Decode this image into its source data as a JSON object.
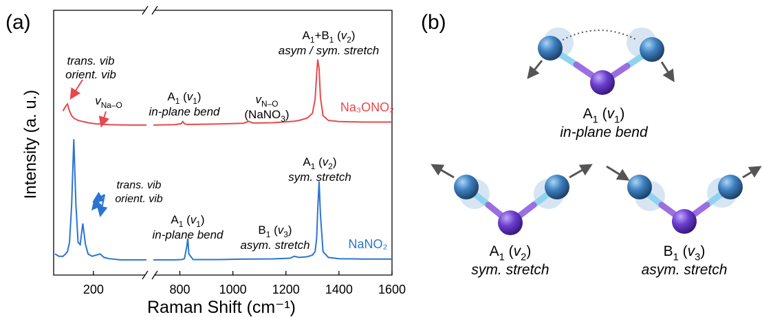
{
  "chart_data": {
    "type": "line",
    "panel_labels": [
      "(a)",
      "(b)"
    ],
    "x_label": "Raman Shift (cm⁻¹)",
    "y_label": "Intensity (a. u.)",
    "xlim": [
      50,
      1600
    ],
    "x_break": [
      400,
      700
    ],
    "ylim": [
      0,
      113
    ],
    "xticks": [
      200,
      800,
      1000,
      1200,
      1400,
      1600
    ],
    "x": [
      55,
      70,
      85,
      95,
      102,
      110,
      118,
      126,
      134,
      142,
      150,
      160,
      170,
      180,
      195,
      210,
      225,
      240,
      260,
      300,
      350,
      400,
      550,
      700,
      780,
      805,
      811,
      817,
      826,
      830,
      834,
      850,
      950,
      1040,
      1060,
      1075,
      1150,
      1215,
      1232,
      1250,
      1280,
      1300,
      1310,
      1316,
      1320,
      1325,
      1330,
      1340,
      1360,
      1400,
      1500,
      1600
    ],
    "series": [
      {
        "name": "Na₃ONO₂",
        "color": "#e8484b",
        "values": [
          null,
          null,
          70,
          72,
          73,
          70,
          68,
          67,
          66.5,
          66,
          65.8,
          65.5,
          65.3,
          65,
          64.8,
          64.5,
          64.5,
          64.3,
          64.2,
          64.1,
          64,
          64,
          null,
          64,
          64.2,
          64.6,
          65.5,
          64.6,
          64.3,
          64.3,
          64.3,
          64.3,
          64.5,
          64.8,
          65.6,
          64.9,
          65,
          65.5,
          65.7,
          66,
          67,
          69,
          75,
          86,
          92,
          88,
          76,
          68,
          66,
          65.5,
          65.3,
          65.3
        ]
      },
      {
        "name": "NaNO₂",
        "color": "#2a74d1",
        "values": [
          9,
          8,
          8,
          9,
          10,
          14,
          30,
          58,
          30,
          14,
          13,
          22,
          13,
          9,
          8,
          8.5,
          9,
          7.5,
          7,
          6.5,
          6.5,
          6.5,
          null,
          6.5,
          6.5,
          6.6,
          6.7,
          7,
          12,
          15.6,
          9,
          6.6,
          6.6,
          6.8,
          6.8,
          6.8,
          6.9,
          7.2,
          8,
          7.5,
          7.8,
          8.5,
          10,
          16,
          28,
          40,
          26,
          10,
          7.5,
          7,
          6.8,
          6.8
        ]
      }
    ],
    "annotations": [
      {
        "color": "#000",
        "lines": [
          [
            {
              "text": "trans. vib",
              "italic": true
            }
          ],
          [
            {
              "text": "orient. vib",
              "italic": true
            }
          ]
        ]
      },
      {
        "color": "#000",
        "lines": [
          [
            {
              "text": "v",
              "italic": true
            },
            {
              "text": "Na–O",
              "sub": true
            }
          ]
        ]
      },
      {
        "color": "#000",
        "lines": [
          [
            {
              "text": "A"
            },
            {
              "text": "1",
              "sub": true
            },
            {
              "text": " ("
            },
            {
              "text": "v",
              "italic": true
            },
            {
              "text": "1",
              "sub": true
            },
            {
              "text": ")"
            }
          ],
          [
            {
              "text": "in-plane bend",
              "italic": true
            }
          ]
        ]
      },
      {
        "color": "#000",
        "lines": [
          [
            {
              "text": "v",
              "italic": true
            },
            {
              "text": "N–O",
              "sub": true
            }
          ],
          [
            {
              "text": "(NaNO"
            },
            {
              "text": "3",
              "sub": true
            },
            {
              "text": ")"
            }
          ]
        ]
      },
      {
        "color": "#000",
        "lines": [
          [
            {
              "text": "A"
            },
            {
              "text": "1",
              "sub": true
            },
            {
              "text": "+B"
            },
            {
              "text": "1",
              "sub": true
            },
            {
              "text": " ("
            },
            {
              "text": "v",
              "italic": true
            },
            {
              "text": "2",
              "sub": true
            },
            {
              "text": ")"
            }
          ],
          [
            {
              "text": "asym / sym. stretch",
              "italic": true
            }
          ]
        ]
      },
      {
        "color": "#000",
        "lines": [
          [
            {
              "text": "A"
            },
            {
              "text": "1",
              "sub": true
            },
            {
              "text": " ("
            },
            {
              "text": "v",
              "italic": true
            },
            {
              "text": "2",
              "sub": true
            },
            {
              "text": ")"
            }
          ],
          [
            {
              "text": "sym. stretch",
              "italic": true
            }
          ]
        ]
      },
      {
        "color": "#000",
        "lines": [
          [
            {
              "text": "trans. vib",
              "italic": true
            }
          ],
          [
            {
              "text": "orient. vib",
              "italic": true
            }
          ]
        ]
      },
      {
        "color": "#000",
        "lines": [
          [
            {
              "text": "A"
            },
            {
              "text": "1",
              "sub": true
            },
            {
              "text": " ("
            },
            {
              "text": "v",
              "italic": true
            },
            {
              "text": "1",
              "sub": true
            },
            {
              "text": ")"
            }
          ],
          [
            {
              "text": "in-plane bend",
              "italic": true
            }
          ]
        ]
      },
      {
        "color": "#000",
        "lines": [
          [
            {
              "text": "B"
            },
            {
              "text": "1",
              "sub": true
            },
            {
              "text": " ("
            },
            {
              "text": "v",
              "italic": true
            },
            {
              "text": "3",
              "sub": true
            },
            {
              "text": ")"
            }
          ],
          [
            {
              "text": "asym. stretch",
              "italic": true
            }
          ]
        ]
      },
      {
        "color": "#000",
        "lines": [
          [
            {
              "text": "A"
            },
            {
              "text": "1",
              "sub": true
            },
            {
              "text": " ("
            },
            {
              "text": "v",
              "italic": true
            },
            {
              "text": "1",
              "sub": true
            },
            {
              "text": ")"
            }
          ],
          [
            {
              "text": "in-plane bend",
              "italic": true
            }
          ]
        ]
      },
      {
        "color": "#000",
        "lines": [
          [
            {
              "text": "A"
            },
            {
              "text": "1",
              "sub": true
            },
            {
              "text": " ("
            },
            {
              "text": "v",
              "italic": true
            },
            {
              "text": "2",
              "sub": true
            },
            {
              "text": ")"
            }
          ],
          [
            {
              "text": "sym. stretch",
              "italic": true
            }
          ]
        ]
      },
      {
        "color": "#000",
        "lines": [
          [
            {
              "text": "B"
            },
            {
              "text": "1",
              "sub": true
            },
            {
              "text": " ("
            },
            {
              "text": "v",
              "italic": true
            },
            {
              "text": "3",
              "sub": true
            },
            {
              "text": ")"
            }
          ],
          [
            {
              "text": "asym. stretch",
              "italic": true
            }
          ]
        ]
      }
    ]
  }
}
